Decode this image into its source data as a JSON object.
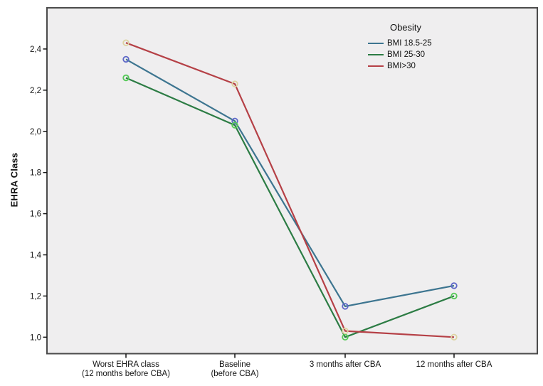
{
  "chart_data": {
    "type": "line",
    "title": "",
    "xlabel": "",
    "ylabel": "EHRA Class",
    "decimal_separator": ",",
    "grid": false,
    "ylim": [
      0.92,
      2.6
    ],
    "legend": {
      "title": "Obesity",
      "position": "top-right-inside"
    },
    "categories": [
      "Worst EHRA class (12 months before CBA)",
      "Baseline (before CBA)",
      "3 months after CBA",
      "12 months after CBA"
    ],
    "category_label_lines": [
      [
        "Worst EHRA class",
        "(12 months before CBA)"
      ],
      [
        "Baseline",
        "(before CBA)"
      ],
      [
        "3 months after CBA"
      ],
      [
        "12 months after CBA"
      ]
    ],
    "y_ticks": [
      {
        "v": 1.0,
        "label": "1,0"
      },
      {
        "v": 1.2,
        "label": "1,2"
      },
      {
        "v": 1.4,
        "label": "1,4"
      },
      {
        "v": 1.6,
        "label": "1,6"
      },
      {
        "v": 1.8,
        "label": "1,8"
      },
      {
        "v": 2.0,
        "label": "2,0"
      },
      {
        "v": 2.2,
        "label": "2,2"
      },
      {
        "v": 2.4,
        "label": "2,4"
      }
    ],
    "series": [
      {
        "name": "BMI 18.5-25",
        "line_color": "#3d7590",
        "marker_color": "#5e68c8",
        "values": [
          2.35,
          2.05,
          1.15,
          1.25
        ]
      },
      {
        "name": "BMI 25-30",
        "line_color": "#2c7c44",
        "marker_color": "#55c957",
        "values": [
          2.26,
          2.03,
          1.0,
          1.2
        ]
      },
      {
        "name": "BMI>30",
        "line_color": "#b54046",
        "marker_color": "#ddd3a2",
        "values": [
          2.43,
          2.23,
          1.03,
          1.0
        ]
      }
    ],
    "style": {
      "plot_bg": "#efeeef",
      "frame_color": "#4b4b4b",
      "tick_color": "#141414",
      "text_color": "#141414",
      "outer_bg": "#ffffff"
    }
  }
}
